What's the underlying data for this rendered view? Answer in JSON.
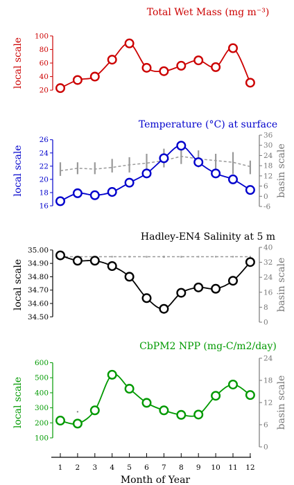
{
  "chart_data": [
    {
      "type": "line",
      "title": "Total Wet Mass (mg m⁻³)",
      "ylabel": "local scale",
      "color": "#cc0000",
      "x": [
        1,
        2,
        3,
        4,
        5,
        6,
        7,
        8,
        9,
        10,
        11,
        12
      ],
      "local": {
        "values": [
          23,
          35,
          40,
          65,
          89,
          53,
          48,
          56,
          64,
          54,
          82,
          31
        ],
        "ylim": [
          15,
          105
        ],
        "ticks": [
          20,
          40,
          60,
          80,
          100
        ]
      }
    },
    {
      "type": "line",
      "title": "Temperature (°C) at surface",
      "ylabel": "local scale",
      "y2label": "basin scale",
      "color": "#0000cc",
      "x": [
        1,
        2,
        3,
        4,
        5,
        6,
        7,
        8,
        9,
        10,
        11,
        12
      ],
      "local": {
        "values": [
          16.7,
          17.9,
          17.6,
          18.1,
          19.5,
          20.9,
          23.2,
          25.1,
          22.6,
          20.9,
          20.0,
          18.4
        ],
        "ylim": [
          15.9,
          26.7
        ],
        "ticks": [
          16,
          18,
          20,
          22,
          24,
          26
        ]
      },
      "basin": {
        "ylim": [
          -6,
          36
        ],
        "ticks": [
          -6,
          0,
          6,
          12,
          18,
          24,
          30,
          36
        ],
        "mean": [
          15.0,
          16.5,
          16.0,
          17.0,
          18.5,
          19.5,
          21.0,
          23.5,
          22.0,
          21.0,
          20.0,
          17.5
        ],
        "low": [
          12,
          13,
          13,
          14,
          14,
          16,
          17,
          19,
          17,
          15,
          13,
          13
        ],
        "high": [
          20,
          20,
          20,
          22,
          23,
          25,
          28,
          29,
          27,
          25,
          26,
          21
        ]
      }
    },
    {
      "type": "line",
      "title": "Hadley-EN4 Salinity at 5 m",
      "ylabel": "local scale",
      "y2label": "basin scale",
      "color": "#000000",
      "x": [
        1,
        2,
        3,
        4,
        5,
        6,
        7,
        8,
        9,
        10,
        11,
        12
      ],
      "local": {
        "values": [
          34.96,
          34.92,
          34.92,
          34.88,
          34.8,
          34.64,
          34.56,
          34.68,
          34.72,
          34.71,
          34.77,
          34.91
        ],
        "ylim": [
          34.46,
          35.02
        ],
        "ticks": [
          "34.50",
          "34.60",
          "34.70",
          "34.80",
          "34.90",
          "35.00"
        ]
      },
      "basin": {
        "ylim": [
          0,
          40
        ],
        "ticks": [
          0,
          8,
          16,
          24,
          32,
          40
        ],
        "mean": [
          35.0,
          35.0,
          35.0,
          35.0,
          35.0,
          35.0,
          35.0,
          35.0,
          35.0,
          35.0,
          35.0,
          35.0
        ],
        "low": [
          34.6,
          34.6,
          34.6,
          34.6,
          34.6,
          34.5,
          34.4,
          34.5,
          34.6,
          34.6,
          34.6,
          34.6
        ],
        "high": [
          35.4,
          35.4,
          35.4,
          35.4,
          35.4,
          35.4,
          35.5,
          35.4,
          35.4,
          35.4,
          35.4,
          35.4
        ]
      }
    },
    {
      "type": "line",
      "title": "CbPM2 NPP (mg-C/m2/day)",
      "ylabel": "local scale",
      "y2label": "basin scale",
      "color": "#009900",
      "x": [
        1,
        2,
        3,
        4,
        5,
        6,
        7,
        8,
        9,
        10,
        11,
        12
      ],
      "local": {
        "values": [
          215,
          195,
          283,
          520,
          427,
          333,
          283,
          253,
          255,
          380,
          455,
          385
        ],
        "ylim": [
          40,
          630
        ],
        "ticks": [
          100,
          200,
          300,
          400,
          500,
          600
        ]
      },
      "basin": {
        "ylim": [
          0,
          24
        ],
        "ticks": [
          0,
          6,
          12,
          18,
          24
        ],
        "outliers": [
          {
            "x": 2,
            "y": 9.5
          }
        ]
      }
    }
  ],
  "x_axis": {
    "label": "Month of Year",
    "ticks": [
      "1",
      "2",
      "3",
      "4",
      "5",
      "6",
      "7",
      "8",
      "9",
      "10",
      "11",
      "12"
    ]
  }
}
